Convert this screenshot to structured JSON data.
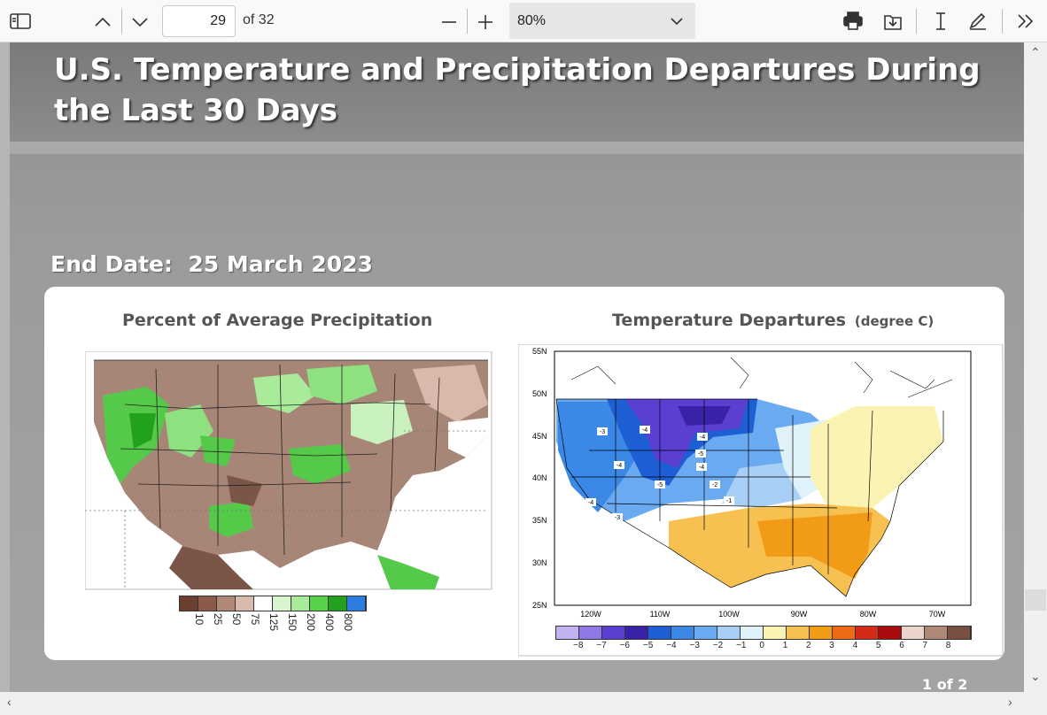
{
  "toolbar": {
    "current_page": "29",
    "of_pages": "of 32",
    "zoom": "80%"
  },
  "slide": {
    "title_line1": "U.S. Temperature and Precipitation Departures During",
    "title_line2": "the Last 30 Days",
    "end_date": "End Date:  25 March 2023",
    "left_map_title": "Percent of Average Precipitation",
    "right_map_title": "Temperature Departures",
    "right_map_unit": "(degree C)",
    "page_counter": "1 of 2"
  },
  "precip_legend": [
    "10",
    "25",
    "50",
    "75",
    "125",
    "150",
    "200",
    "400",
    "800"
  ],
  "precip_colors": [
    "#6b3f2e",
    "#8a5a4a",
    "#b08878",
    "#d9b9ab",
    "#ffffff",
    "#d8f5d0",
    "#a9eb9b",
    "#58d24a",
    "#21a11c",
    "#2d7de0"
  ],
  "temp_legend": [
    "−8",
    "−7",
    "−6",
    "−5",
    "−4",
    "−3",
    "−2",
    "−1",
    "0",
    "1",
    "2",
    "3",
    "4",
    "5",
    "6",
    "7",
    "8"
  ],
  "temp_colors": [
    "#c2b3f0",
    "#8f78e6",
    "#5a3fd0",
    "#3a22a8",
    "#1f5fd6",
    "#3b88e6",
    "#6aaaf0",
    "#a8d0f6",
    "#dff2fa",
    "#fbf3b3",
    "#f7c152",
    "#f29b16",
    "#ee6a14",
    "#d42a18",
    "#a80c0c",
    "#ead4cc",
    "#b08878",
    "#7a4f43"
  ],
  "temp_map": {
    "lat_labels": [
      "55N",
      "50N",
      "45N",
      "40N",
      "35N",
      "30N",
      "25N"
    ],
    "lon_labels": [
      "120W",
      "110W",
      "100W",
      "90W",
      "80W",
      "70W"
    ],
    "contour_labels": [
      "-3",
      "-4",
      "-4",
      "-4",
      "-5",
      "-4",
      "-5",
      "-2",
      "-1",
      "-4",
      "-3"
    ]
  }
}
